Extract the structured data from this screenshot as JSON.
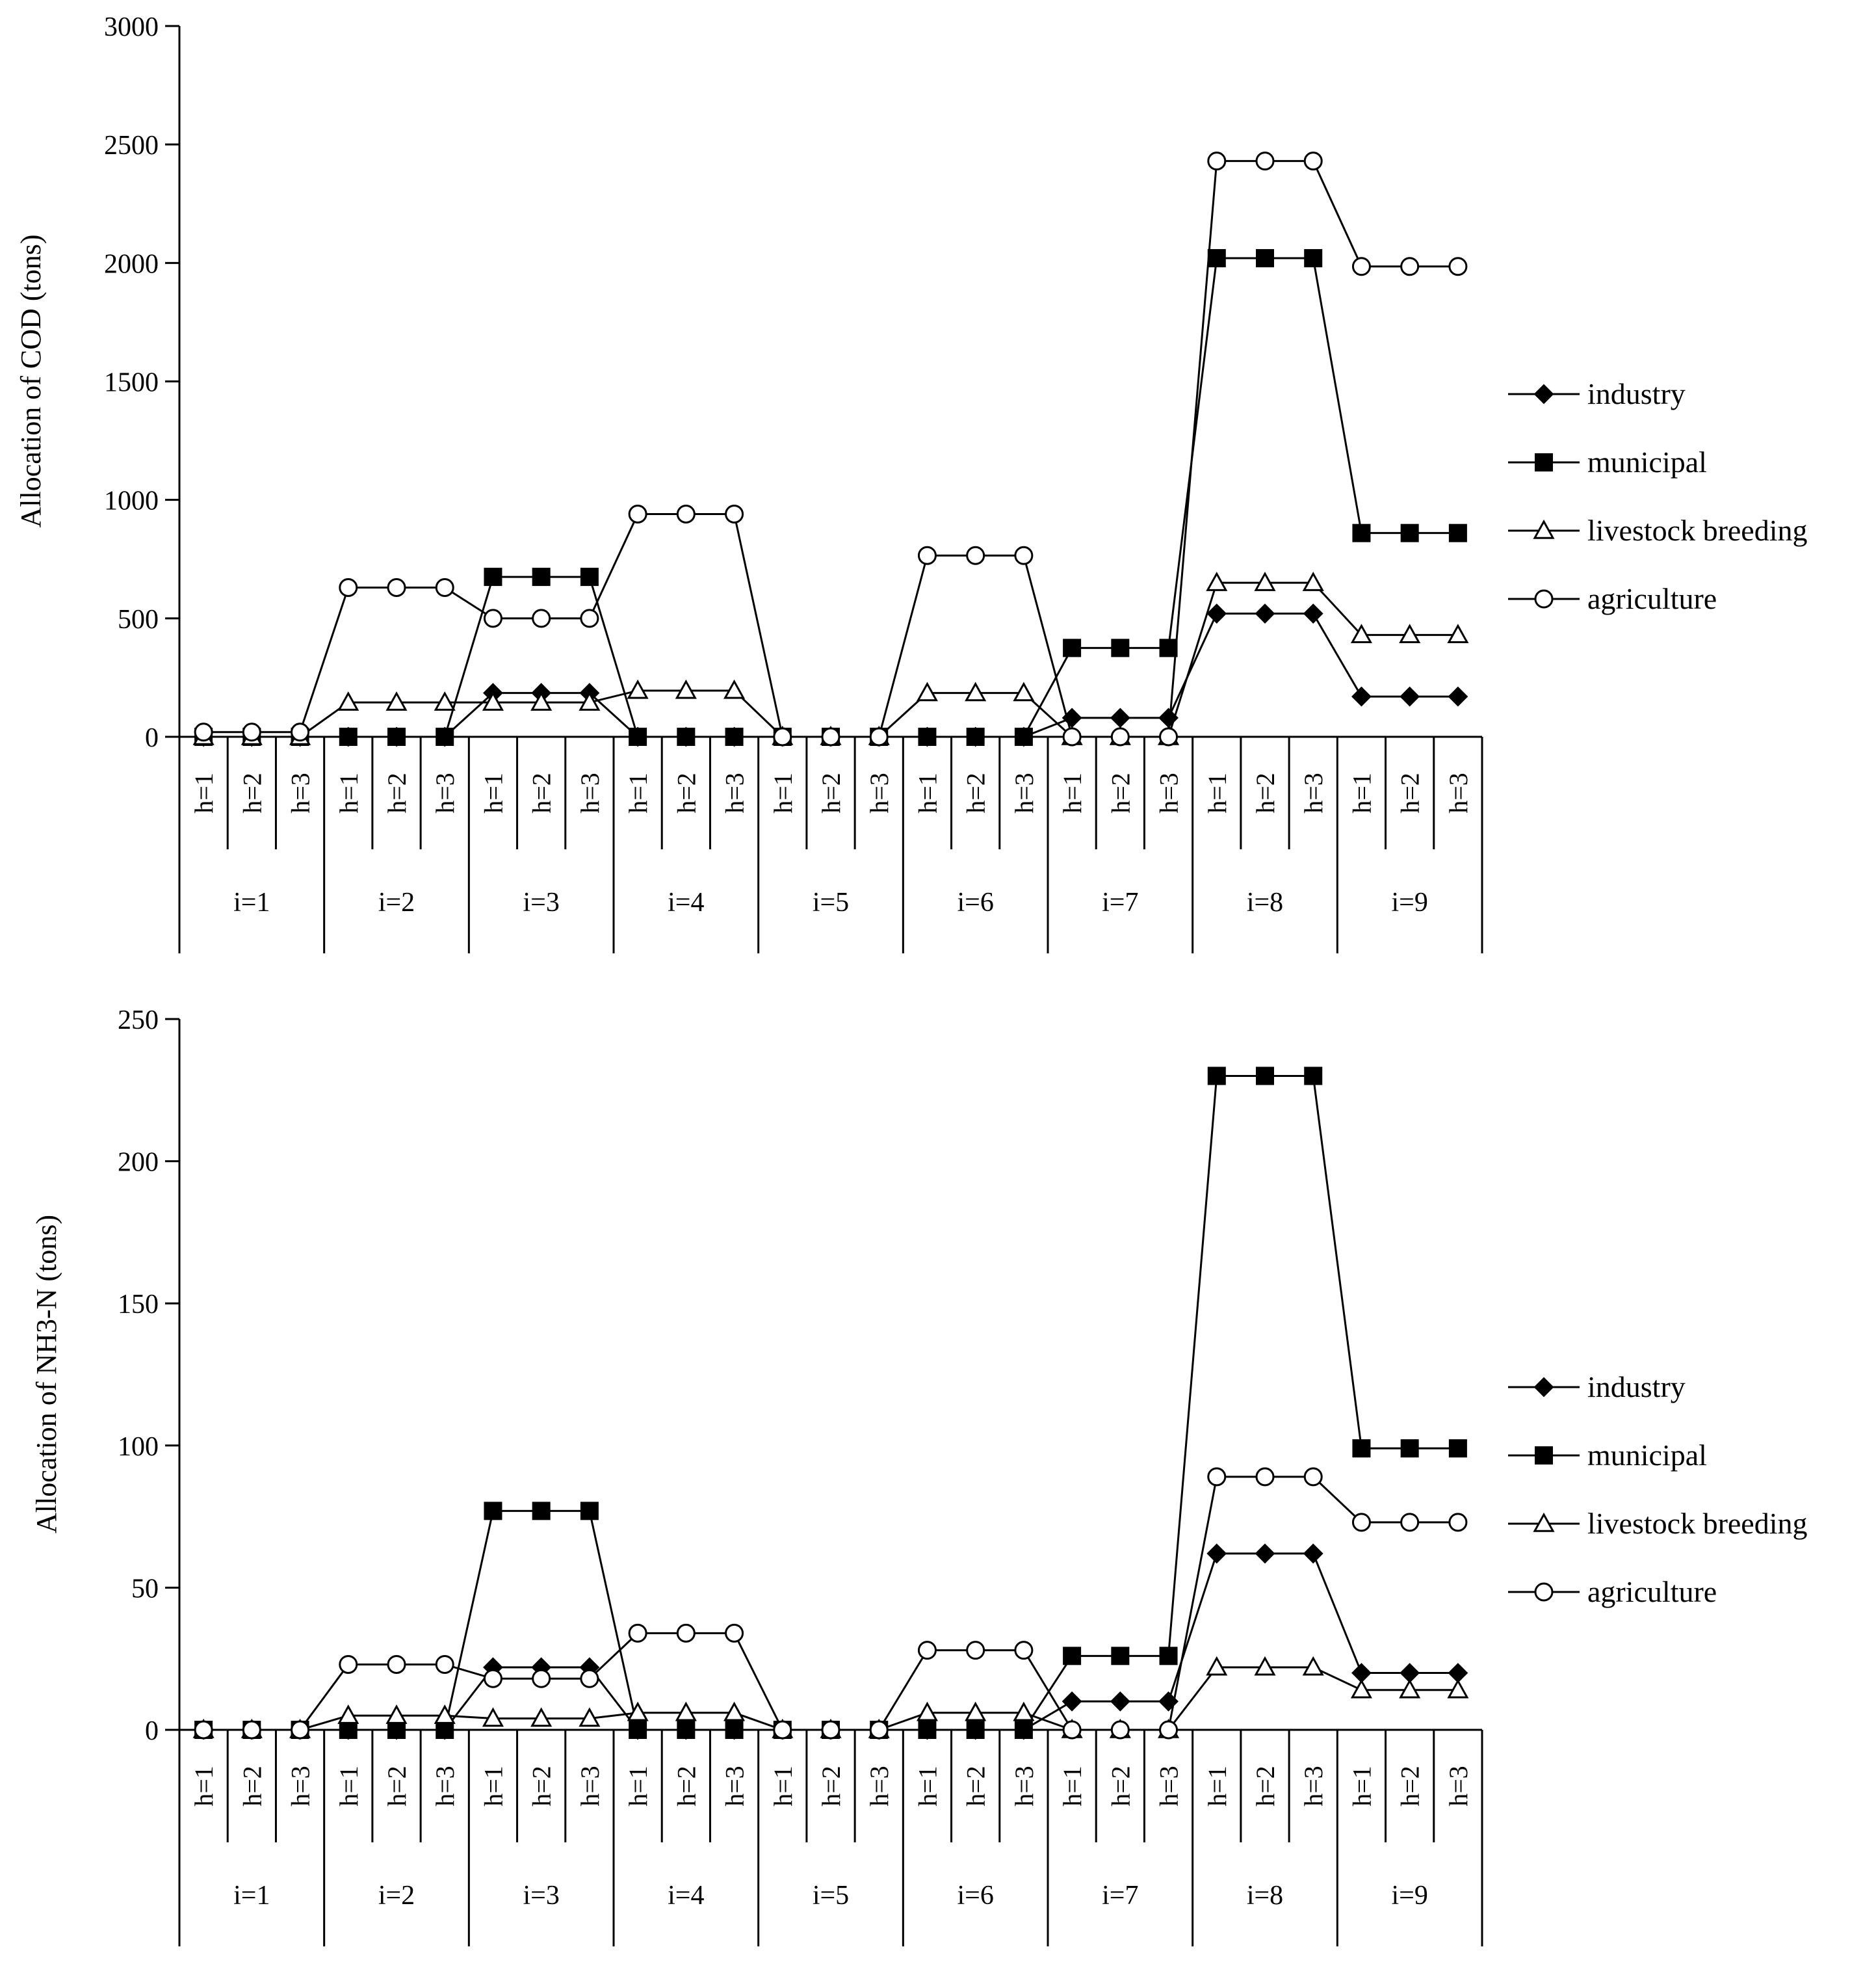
{
  "colors": {
    "ink": "#000000",
    "paper": "#ffffff"
  },
  "chart_data": [
    {
      "type": "line",
      "ylabel": "Allocation of COD (tons)",
      "ylim": [
        0,
        3000
      ],
      "yticks": [
        0,
        500,
        1000,
        1500,
        2000,
        2500,
        3000
      ],
      "groups": [
        "i=1",
        "i=2",
        "i=3",
        "i=4",
        "i=5",
        "i=6",
        "i=7",
        "i=8",
        "i=9"
      ],
      "subcategories": [
        "h=1",
        "h=2",
        "h=3"
      ],
      "legend_position": "right",
      "series": [
        {
          "name": "industry",
          "marker": "diamond-filled",
          "values": [
            0,
            0,
            0,
            0,
            0,
            0,
            185,
            185,
            185,
            0,
            0,
            0,
            0,
            0,
            0,
            0,
            0,
            0,
            80,
            80,
            80,
            520,
            520,
            520,
            170,
            170,
            170
          ]
        },
        {
          "name": "municipal",
          "marker": "square-filled",
          "values": [
            0,
            0,
            0,
            0,
            0,
            0,
            675,
            675,
            675,
            0,
            0,
            0,
            0,
            0,
            0,
            0,
            0,
            0,
            375,
            375,
            375,
            2020,
            2020,
            2020,
            860,
            860,
            860
          ]
        },
        {
          "name": "livestock breeding",
          "marker": "triangle-open",
          "values": [
            0,
            0,
            0,
            145,
            145,
            145,
            145,
            145,
            145,
            195,
            195,
            195,
            0,
            0,
            0,
            185,
            185,
            185,
            0,
            0,
            0,
            650,
            650,
            650,
            430,
            430,
            430
          ]
        },
        {
          "name": "agriculture",
          "marker": "circle-open",
          "values": [
            20,
            20,
            20,
            630,
            630,
            630,
            500,
            500,
            500,
            940,
            940,
            940,
            0,
            0,
            0,
            765,
            765,
            765,
            0,
            0,
            0,
            2430,
            2430,
            2430,
            1985,
            1985,
            1985
          ]
        }
      ]
    },
    {
      "type": "line",
      "ylabel": "Allocation of NH3-N (tons)",
      "ylim": [
        0,
        250
      ],
      "yticks": [
        0,
        50,
        100,
        150,
        200,
        250
      ],
      "groups": [
        "i=1",
        "i=2",
        "i=3",
        "i=4",
        "i=5",
        "i=6",
        "i=7",
        "i=8",
        "i=9"
      ],
      "subcategories": [
        "h=1",
        "h=2",
        "h=3"
      ],
      "legend_position": "right",
      "series": [
        {
          "name": "industry",
          "marker": "diamond-filled",
          "values": [
            0,
            0,
            0,
            0,
            0,
            0,
            22,
            22,
            22,
            0,
            0,
            0,
            0,
            0,
            0,
            0,
            0,
            0,
            10,
            10,
            10,
            62,
            62,
            62,
            20,
            20,
            20
          ]
        },
        {
          "name": "municipal",
          "marker": "square-filled",
          "values": [
            0,
            0,
            0,
            0,
            0,
            0,
            77,
            77,
            77,
            0,
            0,
            0,
            0,
            0,
            0,
            0,
            0,
            0,
            26,
            26,
            26,
            230,
            230,
            230,
            99,
            99,
            99
          ]
        },
        {
          "name": "livestock breeding",
          "marker": "triangle-open",
          "values": [
            0,
            0,
            0,
            5,
            5,
            5,
            4,
            4,
            4,
            6,
            6,
            6,
            0,
            0,
            0,
            6,
            6,
            6,
            0,
            0,
            0,
            22,
            22,
            22,
            14,
            14,
            14
          ]
        },
        {
          "name": "agriculture",
          "marker": "circle-open",
          "values": [
            0,
            0,
            0,
            23,
            23,
            23,
            18,
            18,
            18,
            34,
            34,
            34,
            0,
            0,
            0,
            28,
            28,
            28,
            0,
            0,
            0,
            89,
            89,
            89,
            73,
            73,
            73
          ]
        }
      ]
    }
  ]
}
